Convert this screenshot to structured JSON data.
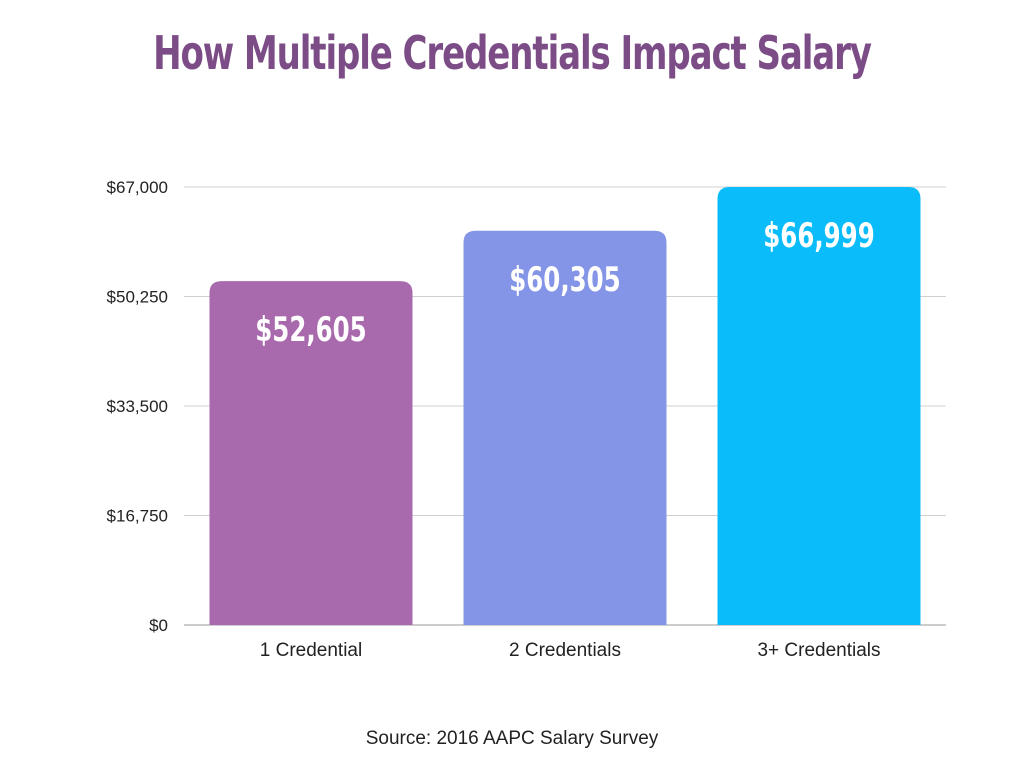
{
  "title": "How Multiple Credentials Impact Salary",
  "source": "Source: 2016 AAPC Salary Survey",
  "colors": {
    "title": "#7c4c87",
    "grid": "#d0d0d0",
    "axis": "#999999",
    "tick_text": "#222222",
    "value_label": "#ffffff"
  },
  "chart_data": {
    "type": "bar",
    "title": "How Multiple Credentials Impact Salary",
    "xlabel": "",
    "ylabel": "",
    "categories": [
      "1 Credential",
      "2 Credentials",
      "3+ Credentials"
    ],
    "values": [
      52605,
      60305,
      66999
    ],
    "value_labels": [
      "$52,605",
      "$60,305",
      "$66,999"
    ],
    "bar_colors": [
      "#a96aad",
      "#8494e6",
      "#0bbcfa"
    ],
    "ylim": [
      0,
      67000
    ],
    "yticks": [
      0,
      16750,
      33500,
      50250,
      67000
    ],
    "ytick_labels": [
      "$0",
      "$16,750",
      "$33,500",
      "$50,250",
      "$67,000"
    ],
    "grid": true,
    "legend": "none"
  }
}
